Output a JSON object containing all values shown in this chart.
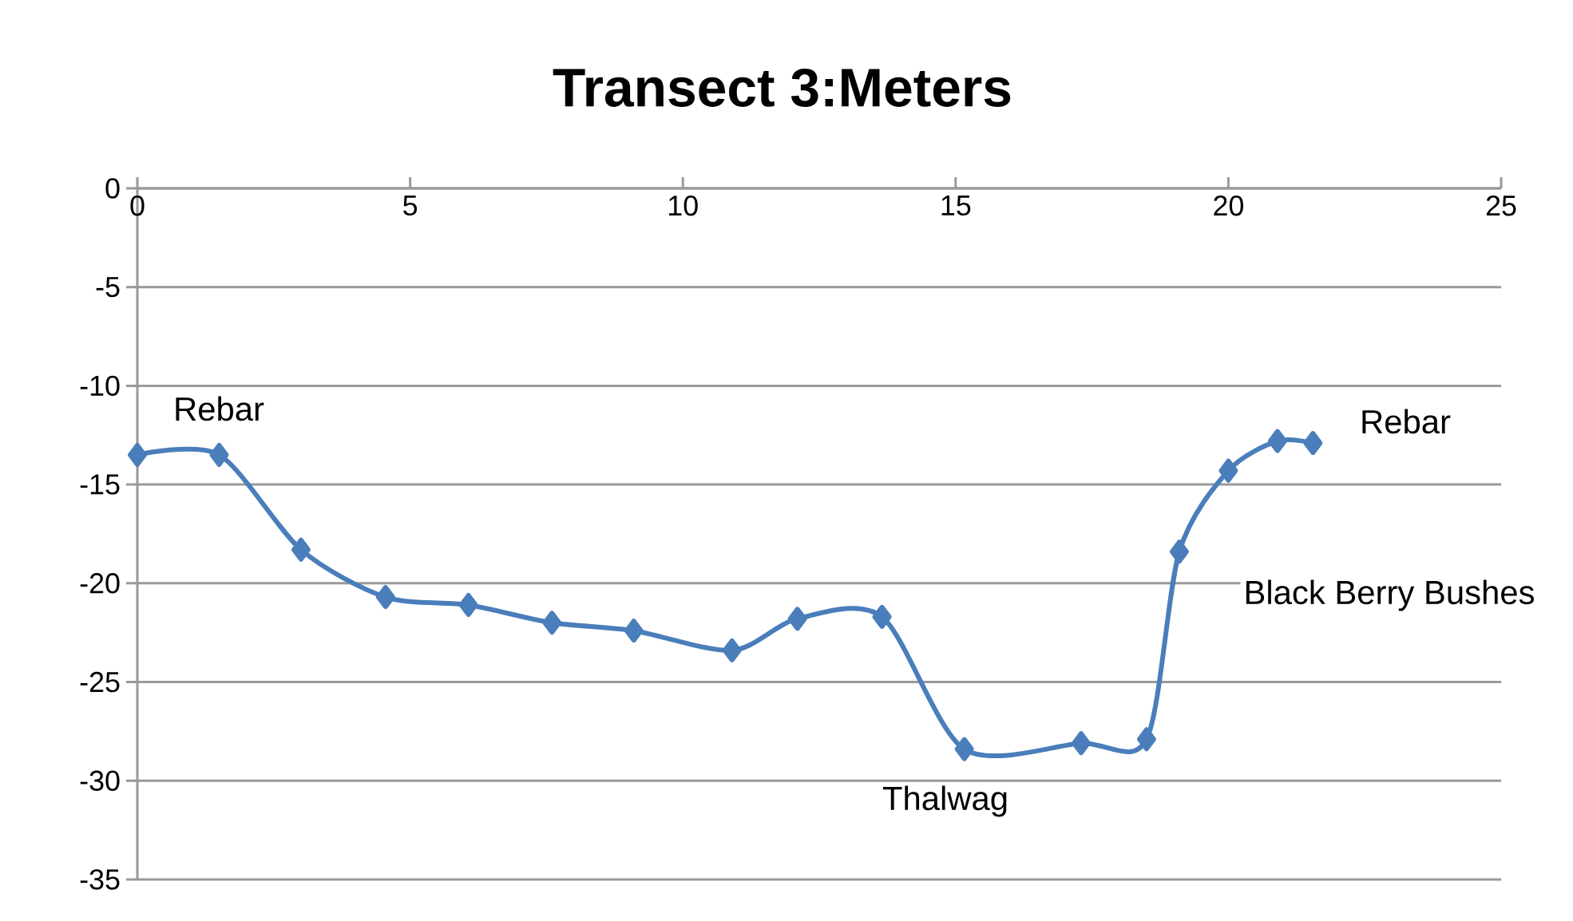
{
  "chart_data": {
    "type": "line",
    "title": "Transect 3:Meters",
    "x": [
      0,
      1.5,
      3.0,
      4.55,
      6.07,
      7.6,
      9.1,
      10.9,
      12.1,
      13.65,
      15.16,
      17.3,
      18.5,
      19.1,
      20.0,
      20.9,
      21.55
    ],
    "values": [
      -13.5,
      -13.5,
      -18.3,
      -20.7,
      -21.1,
      -22.0,
      -22.4,
      -23.4,
      -21.8,
      -21.7,
      -28.4,
      -28.1,
      -27.9,
      -18.4,
      -14.3,
      -12.8,
      -12.9
    ],
    "color": "#4a7ebb",
    "marker": "diamond",
    "line_style": "solid",
    "xlim": [
      0,
      25
    ],
    "ylim": [
      -35,
      0
    ],
    "xticks": [
      0,
      5,
      10,
      15,
      20,
      25
    ],
    "yticks": [
      0,
      -5,
      -10,
      -15,
      -20,
      -25,
      -30,
      -35
    ],
    "grid": "y",
    "annotations": [
      "Rebar",
      "Rebar",
      "Black Berry Bushes",
      "Thalwag"
    ]
  }
}
